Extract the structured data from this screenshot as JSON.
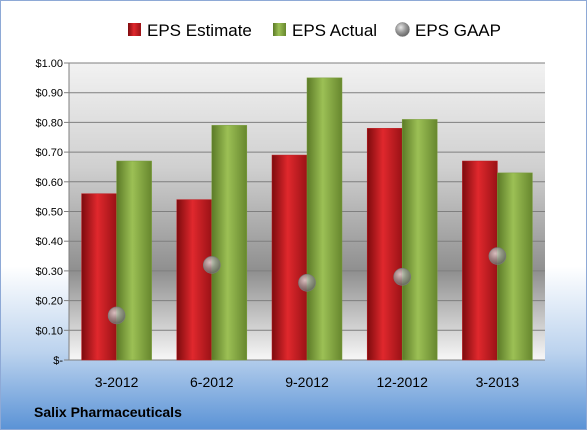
{
  "company": "Salix Pharmaceuticals",
  "colors": {
    "estimate": "#c0181d",
    "actual": "#7a9e3a",
    "gaap": "#9a9a9a"
  },
  "chart_data": {
    "type": "bar",
    "categories": [
      "3-2012",
      "6-2012",
      "9-2012",
      "12-2012",
      "3-2013"
    ],
    "series": [
      {
        "name": "EPS Estimate",
        "kind": "bar",
        "values": [
          0.56,
          0.54,
          0.69,
          0.78,
          0.67
        ]
      },
      {
        "name": "EPS Actual",
        "kind": "bar",
        "values": [
          0.67,
          0.79,
          0.95,
          0.81,
          0.63
        ]
      },
      {
        "name": "EPS GAAP",
        "kind": "marker",
        "values": [
          0.15,
          0.32,
          0.26,
          0.28,
          0.35
        ]
      }
    ],
    "y_ticks": [
      "$-",
      "$0.10",
      "$0.20",
      "$0.30",
      "$0.40",
      "$0.50",
      "$0.60",
      "$0.70",
      "$0.80",
      "$0.90",
      "$1.00"
    ],
    "ylim": [
      0,
      1.0
    ],
    "legend_position": "top",
    "grid": true
  }
}
